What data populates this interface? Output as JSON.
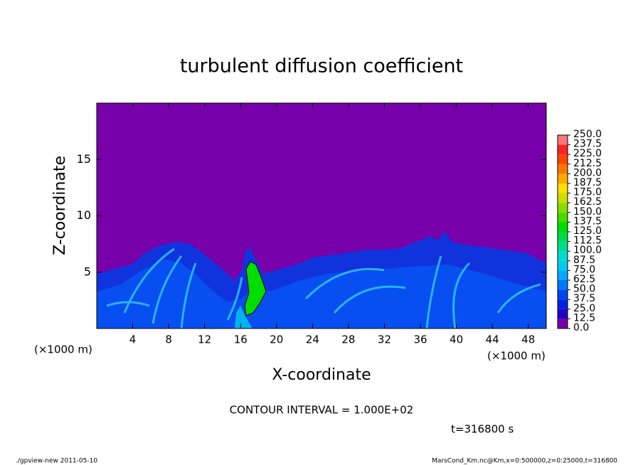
{
  "chart_data": {
    "type": "contour",
    "title": "turbulent diffusion coefficient",
    "xlabel": "X-coordinate",
    "ylabel": "Z-coordinate",
    "xunit": "(×1000 m)",
    "xunit2": "(×1000 m)",
    "xlim": [
      0,
      50
    ],
    "ylim": [
      0,
      20
    ],
    "xticks": [
      4,
      8,
      12,
      16,
      20,
      24,
      28,
      32,
      36,
      40,
      44,
      48
    ],
    "yticks": [
      5,
      10,
      15
    ],
    "background": "#7700aa",
    "colorbar": {
      "levels": [
        {
          "value": 0,
          "label": "0.0"
        },
        {
          "value": 12.5,
          "label": "12.5"
        },
        {
          "value": 25,
          "label": "25.0"
        },
        {
          "value": 37.5,
          "label": "37.5"
        },
        {
          "value": 50,
          "label": "50.0"
        },
        {
          "value": 62.5,
          "label": "62.5"
        },
        {
          "value": 75,
          "label": "75.0"
        },
        {
          "value": 87.5,
          "label": "87.5"
        },
        {
          "value": 100,
          "label": "100.0"
        },
        {
          "value": 112.5,
          "label": "112.5"
        },
        {
          "value": 125,
          "label": "125.0"
        },
        {
          "value": 137.5,
          "label": "137.5"
        },
        {
          "value": 150,
          "label": "150.0"
        },
        {
          "value": 162.5,
          "label": "162.5"
        },
        {
          "value": 175,
          "label": "175.0"
        },
        {
          "value": 187.5,
          "label": "187.5"
        },
        {
          "value": 200,
          "label": "200.0"
        },
        {
          "value": 212.5,
          "label": "212.5"
        },
        {
          "value": 225,
          "label": "225.0"
        },
        {
          "value": 237.5,
          "label": "237.5"
        },
        {
          "value": 250,
          "label": "250.0"
        }
      ],
      "colors": [
        "#7700aa",
        "#2200cc",
        "#0022dd",
        "#0044ee",
        "#0077ff",
        "#00aaff",
        "#00ccee",
        "#00ddcc",
        "#00dd88",
        "#00dd44",
        "#00dd00",
        "#44dd00",
        "#88dd00",
        "#ccdd00",
        "#ffdd00",
        "#ffaa00",
        "#ff7700",
        "#ff4400",
        "#ff2222",
        "#ff7777"
      ]
    },
    "annotation": "CONTOUR INTERVAL = 1.000E+02",
    "time": "t=316800 s",
    "footer_left": "./gpview-new  2011-05-10",
    "footer_right": "MarsCond_Km.nc@Km,x=0:500000,z=0:25000,t=316800"
  }
}
